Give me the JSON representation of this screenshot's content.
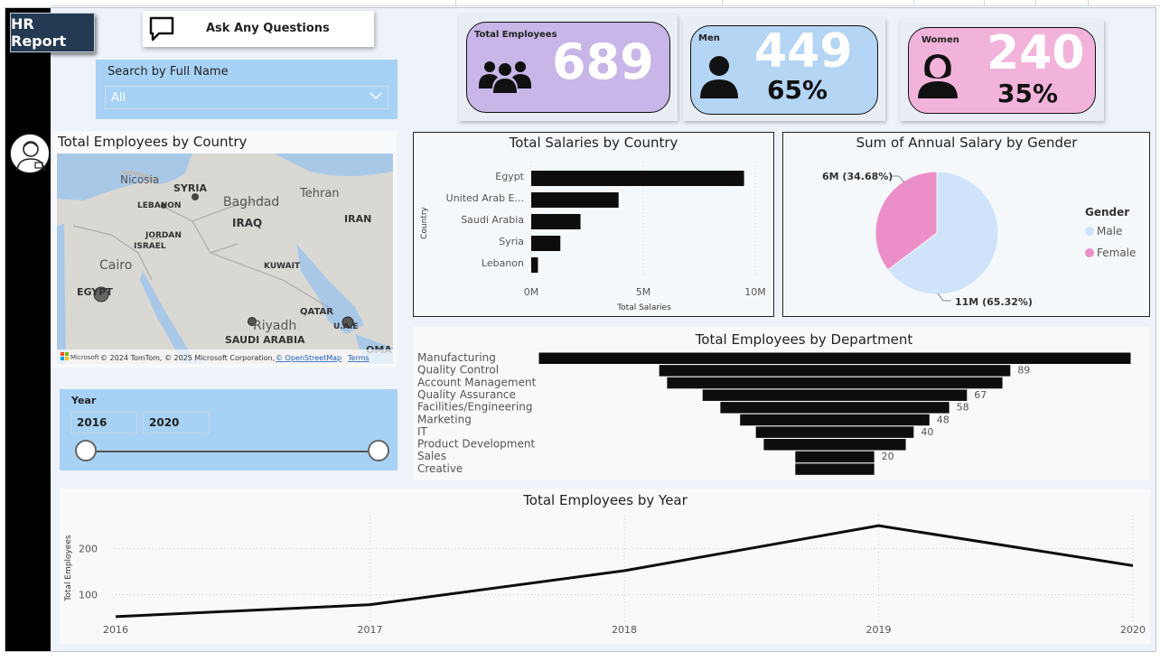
{
  "header": {
    "report_button": "HR Report",
    "ask_button": "Ask Any Questions"
  },
  "search": {
    "label": "Search by Full Name",
    "selected": "All"
  },
  "kpis": {
    "total": {
      "caption": "Total Employees",
      "value": "689",
      "color": "#c9b6e8"
    },
    "men": {
      "caption": "Men",
      "value": "449",
      "pct": "65%",
      "color": "#b4d5f4"
    },
    "women": {
      "caption": "Women",
      "value": "240",
      "pct": "35%",
      "color": "#f2b3da"
    }
  },
  "map": {
    "title": "Total Employees by Country",
    "labels": [
      "Nicosia",
      "SYRIA",
      "LEBANON",
      "Baghdad",
      "IRAQ",
      "Tehran",
      "IRAN",
      "JORDAN",
      "ISRAEL",
      "Cairo",
      "KUWAIT",
      "EGYPT",
      "QATAR",
      "Riyadh",
      "SAUDI ARABIA",
      "U.A.E",
      "OMA"
    ],
    "attribution": "© 2024 TomTom, © 2025 Microsoft Corporation,",
    "attribution_link": "© OpenStreetMap",
    "terms": "Terms",
    "logo": "Microsoft"
  },
  "year_slicer": {
    "label": "Year",
    "start": "2016",
    "end": "2020"
  },
  "chart_data": [
    {
      "type": "bar",
      "title": "Total Salaries by Country",
      "xlabel": "Total Salaries",
      "ylabel": "Country",
      "categories": [
        "Egypt",
        "United Arab E...",
        "Saudi Arabia",
        "Syria",
        "Lebanon"
      ],
      "values": [
        9.5,
        3.9,
        2.2,
        1.3,
        0.3
      ],
      "unit": "M",
      "xticks": [
        "0M",
        "5M",
        "10M"
      ],
      "xlim": [
        0,
        10
      ]
    },
    {
      "type": "pie",
      "title": "Sum of Annual Salary by Gender",
      "legend_title": "Gender",
      "slices": [
        {
          "name": "Male",
          "value": 11,
          "label": "11M (65.32%)",
          "color": "#cfe4fa"
        },
        {
          "name": "Female",
          "value": 6,
          "label": "6M (34.68%)",
          "color": "#ec8fc8"
        }
      ],
      "legend_position": "right"
    },
    {
      "type": "bar",
      "title": "Total Employees by Department",
      "categories": [
        "Manufacturing",
        "Quality Control",
        "Account Management",
        "Quality Assurance",
        "Facilities/Engineering",
        "Marketing",
        "IT",
        "Product Development",
        "Sales",
        "Creative"
      ],
      "values": [
        150,
        89,
        85,
        67,
        58,
        48,
        40,
        36,
        20,
        20
      ],
      "data_labels": [
        "",
        "89",
        "",
        "67",
        "58",
        "48",
        "40",
        "",
        "20",
        ""
      ]
    },
    {
      "type": "line",
      "title": "Total Employees by Year",
      "ylabel": "Total Employees",
      "x": [
        "2016",
        "2017",
        "2018",
        "2019",
        "2020"
      ],
      "values": [
        52,
        78,
        152,
        250,
        163
      ],
      "yticks": [
        100,
        200
      ],
      "ylim": [
        40,
        260
      ]
    }
  ]
}
